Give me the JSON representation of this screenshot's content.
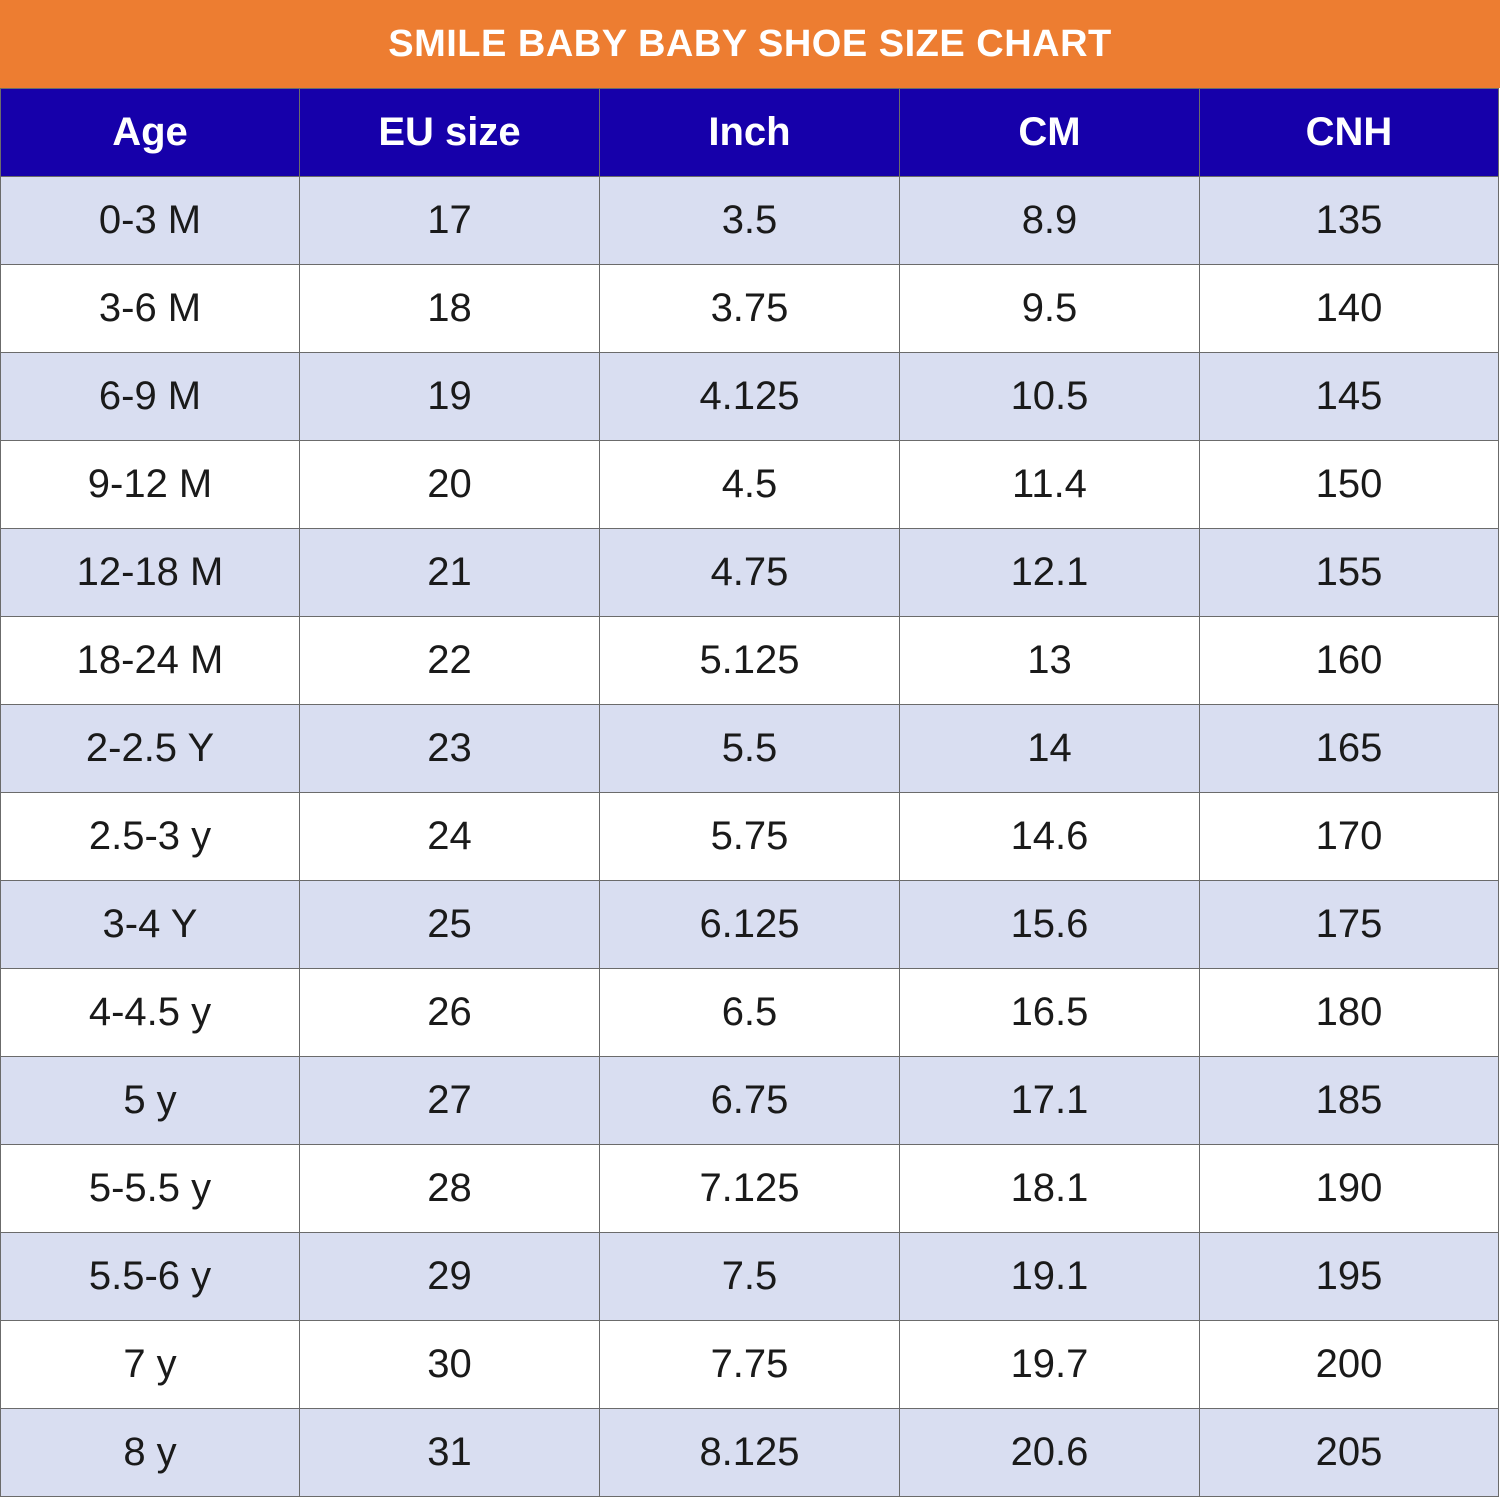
{
  "title": "SMILE BABY BABY SHOE SIZE CHART",
  "colors": {
    "title_bar": "#ED7D31",
    "header_row": "#1600AA",
    "stripe_row": "#D9DEF1",
    "plain_row": "#FFFFFF"
  },
  "table": {
    "headers": [
      "Age",
      "EU size",
      "Inch",
      "CM",
      "CNH"
    ],
    "rows": [
      [
        "0-3 M",
        "17",
        "3.5",
        "8.9",
        "135"
      ],
      [
        "3-6 M",
        "18",
        "3.75",
        "9.5",
        "140"
      ],
      [
        "6-9 M",
        "19",
        "4.125",
        "10.5",
        "145"
      ],
      [
        "9-12 M",
        "20",
        "4.5",
        "11.4",
        "150"
      ],
      [
        "12-18 M",
        "21",
        "4.75",
        "12.1",
        "155"
      ],
      [
        "18-24 M",
        "22",
        "5.125",
        "13",
        "160"
      ],
      [
        "2-2.5 Y",
        "23",
        "5.5",
        "14",
        "165"
      ],
      [
        "2.5-3 y",
        "24",
        "5.75",
        "14.6",
        "170"
      ],
      [
        "3-4 Y",
        "25",
        "6.125",
        "15.6",
        "175"
      ],
      [
        "4-4.5 y",
        "26",
        "6.5",
        "16.5",
        "180"
      ],
      [
        "5 y",
        "27",
        "6.75",
        "17.1",
        "185"
      ],
      [
        "5-5.5 y",
        "28",
        "7.125",
        "18.1",
        "190"
      ],
      [
        "5.5-6 y",
        "29",
        "7.5",
        "19.1",
        "195"
      ],
      [
        "7 y",
        "30",
        "7.75",
        "19.7",
        "200"
      ],
      [
        "8 y",
        "31",
        "8.125",
        "20.6",
        "205"
      ]
    ]
  }
}
